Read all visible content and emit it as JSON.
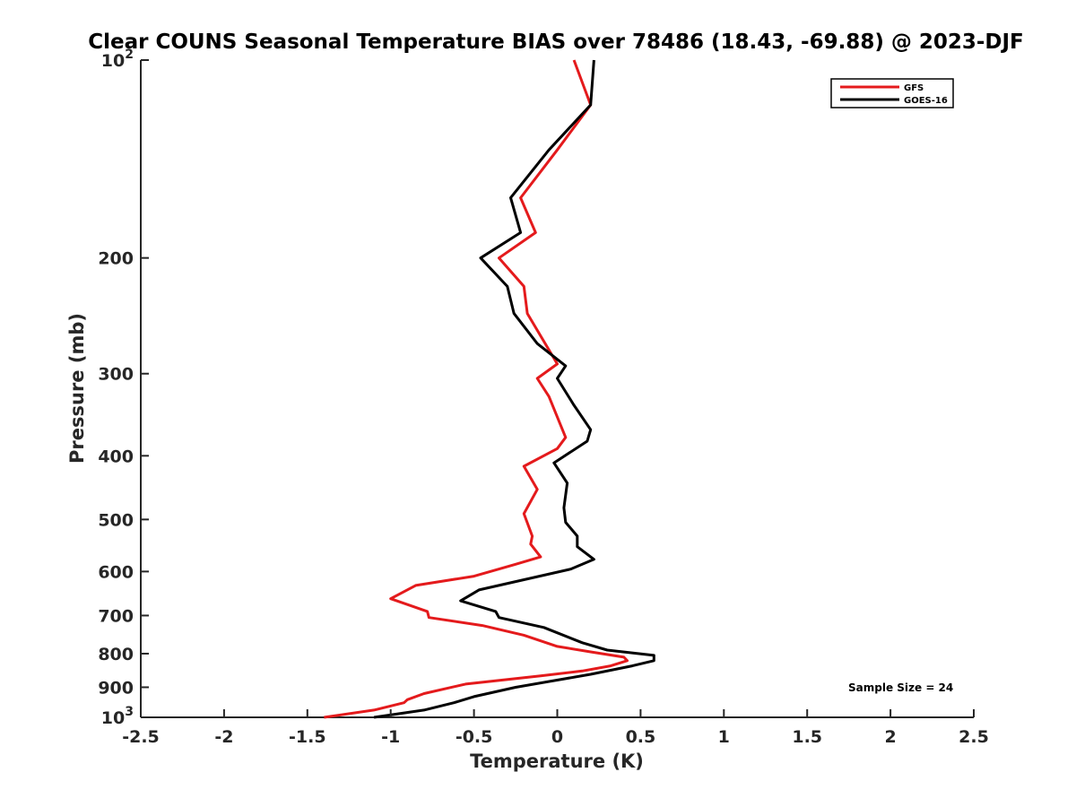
{
  "chart_data": {
    "type": "line",
    "title": "Clear COUNS Seasonal Temperature BIAS over 78486 (18.43, -69.88) @ 2023-DJF",
    "xlabel": "Temperature (K)",
    "ylabel": "Pressure (mb)",
    "xlim": [
      -2.5,
      2.5
    ],
    "ylim": [
      100,
      1000
    ],
    "y_scale": "log",
    "y_reversed": true,
    "grid": false,
    "x_ticks": [
      {
        "value": -2.5,
        "label": "-2.5"
      },
      {
        "value": -2,
        "label": "-2"
      },
      {
        "value": -1.5,
        "label": "-1.5"
      },
      {
        "value": -1,
        "label": "-1"
      },
      {
        "value": -0.5,
        "label": "-0.5"
      },
      {
        "value": 0,
        "label": "0"
      },
      {
        "value": 0.5,
        "label": "0.5"
      },
      {
        "value": 1,
        "label": "1"
      },
      {
        "value": 1.5,
        "label": "1.5"
      },
      {
        "value": 2,
        "label": "2"
      },
      {
        "value": 2.5,
        "label": "2.5"
      }
    ],
    "y_ticks": [
      {
        "value": 100,
        "base": "10",
        "exp": "2"
      },
      {
        "value": 200,
        "label": "200"
      },
      {
        "value": 300,
        "label": "300"
      },
      {
        "value": 400,
        "label": "400"
      },
      {
        "value": 500,
        "label": "500"
      },
      {
        "value": 600,
        "label": "600"
      },
      {
        "value": 700,
        "label": "700"
      },
      {
        "value": 800,
        "label": "800"
      },
      {
        "value": 900,
        "label": "900"
      },
      {
        "value": 1000,
        "base": "10",
        "exp": "3"
      }
    ],
    "legend_position": "top-right",
    "annotation": "Sample Size = 24",
    "series": [
      {
        "name": "GFS",
        "color": "#e41a1c",
        "points": [
          {
            "x": 0.1,
            "p": 100
          },
          {
            "x": 0.2,
            "p": 117
          },
          {
            "x": 0.0,
            "p": 137
          },
          {
            "x": -0.22,
            "p": 162
          },
          {
            "x": -0.13,
            "p": 183
          },
          {
            "x": -0.35,
            "p": 200
          },
          {
            "x": -0.2,
            "p": 221
          },
          {
            "x": -0.18,
            "p": 243
          },
          {
            "x": 0.0,
            "p": 290
          },
          {
            "x": -0.12,
            "p": 305
          },
          {
            "x": -0.05,
            "p": 325
          },
          {
            "x": 0.05,
            "p": 375
          },
          {
            "x": 0.0,
            "p": 390
          },
          {
            "x": -0.2,
            "p": 415
          },
          {
            "x": -0.12,
            "p": 450
          },
          {
            "x": -0.2,
            "p": 490
          },
          {
            "x": -0.15,
            "p": 530
          },
          {
            "x": -0.16,
            "p": 545
          },
          {
            "x": -0.1,
            "p": 570
          },
          {
            "x": -0.25,
            "p": 585
          },
          {
            "x": -0.5,
            "p": 610
          },
          {
            "x": -0.85,
            "p": 630
          },
          {
            "x": -1.0,
            "p": 660
          },
          {
            "x": -0.78,
            "p": 690
          },
          {
            "x": -0.77,
            "p": 705
          },
          {
            "x": -0.45,
            "p": 725
          },
          {
            "x": -0.2,
            "p": 750
          },
          {
            "x": 0.0,
            "p": 780
          },
          {
            "x": 0.2,
            "p": 795
          },
          {
            "x": 0.4,
            "p": 810
          },
          {
            "x": 0.42,
            "p": 820
          },
          {
            "x": 0.32,
            "p": 835
          },
          {
            "x": 0.15,
            "p": 850
          },
          {
            "x": -0.1,
            "p": 865
          },
          {
            "x": -0.55,
            "p": 890
          },
          {
            "x": -0.8,
            "p": 920
          },
          {
            "x": -0.9,
            "p": 940
          },
          {
            "x": -0.92,
            "p": 950
          },
          {
            "x": -1.1,
            "p": 975
          },
          {
            "x": -1.4,
            "p": 1000
          }
        ]
      },
      {
        "name": "GOES-16",
        "color": "#000000",
        "points": [
          {
            "x": 0.22,
            "p": 100
          },
          {
            "x": 0.2,
            "p": 117
          },
          {
            "x": -0.05,
            "p": 137
          },
          {
            "x": -0.28,
            "p": 162
          },
          {
            "x": -0.22,
            "p": 183
          },
          {
            "x": -0.46,
            "p": 200
          },
          {
            "x": -0.3,
            "p": 221
          },
          {
            "x": -0.26,
            "p": 243
          },
          {
            "x": -0.12,
            "p": 270
          },
          {
            "x": 0.05,
            "p": 292
          },
          {
            "x": 0.0,
            "p": 305
          },
          {
            "x": 0.1,
            "p": 335
          },
          {
            "x": 0.2,
            "p": 365
          },
          {
            "x": 0.18,
            "p": 380
          },
          {
            "x": -0.02,
            "p": 410
          },
          {
            "x": 0.06,
            "p": 440
          },
          {
            "x": 0.04,
            "p": 480
          },
          {
            "x": 0.05,
            "p": 505
          },
          {
            "x": 0.12,
            "p": 530
          },
          {
            "x": 0.12,
            "p": 550
          },
          {
            "x": 0.22,
            "p": 575
          },
          {
            "x": 0.08,
            "p": 595
          },
          {
            "x": -0.47,
            "p": 640
          },
          {
            "x": -0.58,
            "p": 665
          },
          {
            "x": -0.37,
            "p": 690
          },
          {
            "x": -0.35,
            "p": 705
          },
          {
            "x": -0.08,
            "p": 730
          },
          {
            "x": 0.15,
            "p": 770
          },
          {
            "x": 0.3,
            "p": 790
          },
          {
            "x": 0.58,
            "p": 805
          },
          {
            "x": 0.58,
            "p": 820
          },
          {
            "x": 0.45,
            "p": 835
          },
          {
            "x": 0.2,
            "p": 860
          },
          {
            "x": -0.25,
            "p": 900
          },
          {
            "x": -0.5,
            "p": 930
          },
          {
            "x": -0.62,
            "p": 950
          },
          {
            "x": -0.8,
            "p": 975
          },
          {
            "x": -1.1,
            "p": 1000
          }
        ]
      }
    ]
  }
}
